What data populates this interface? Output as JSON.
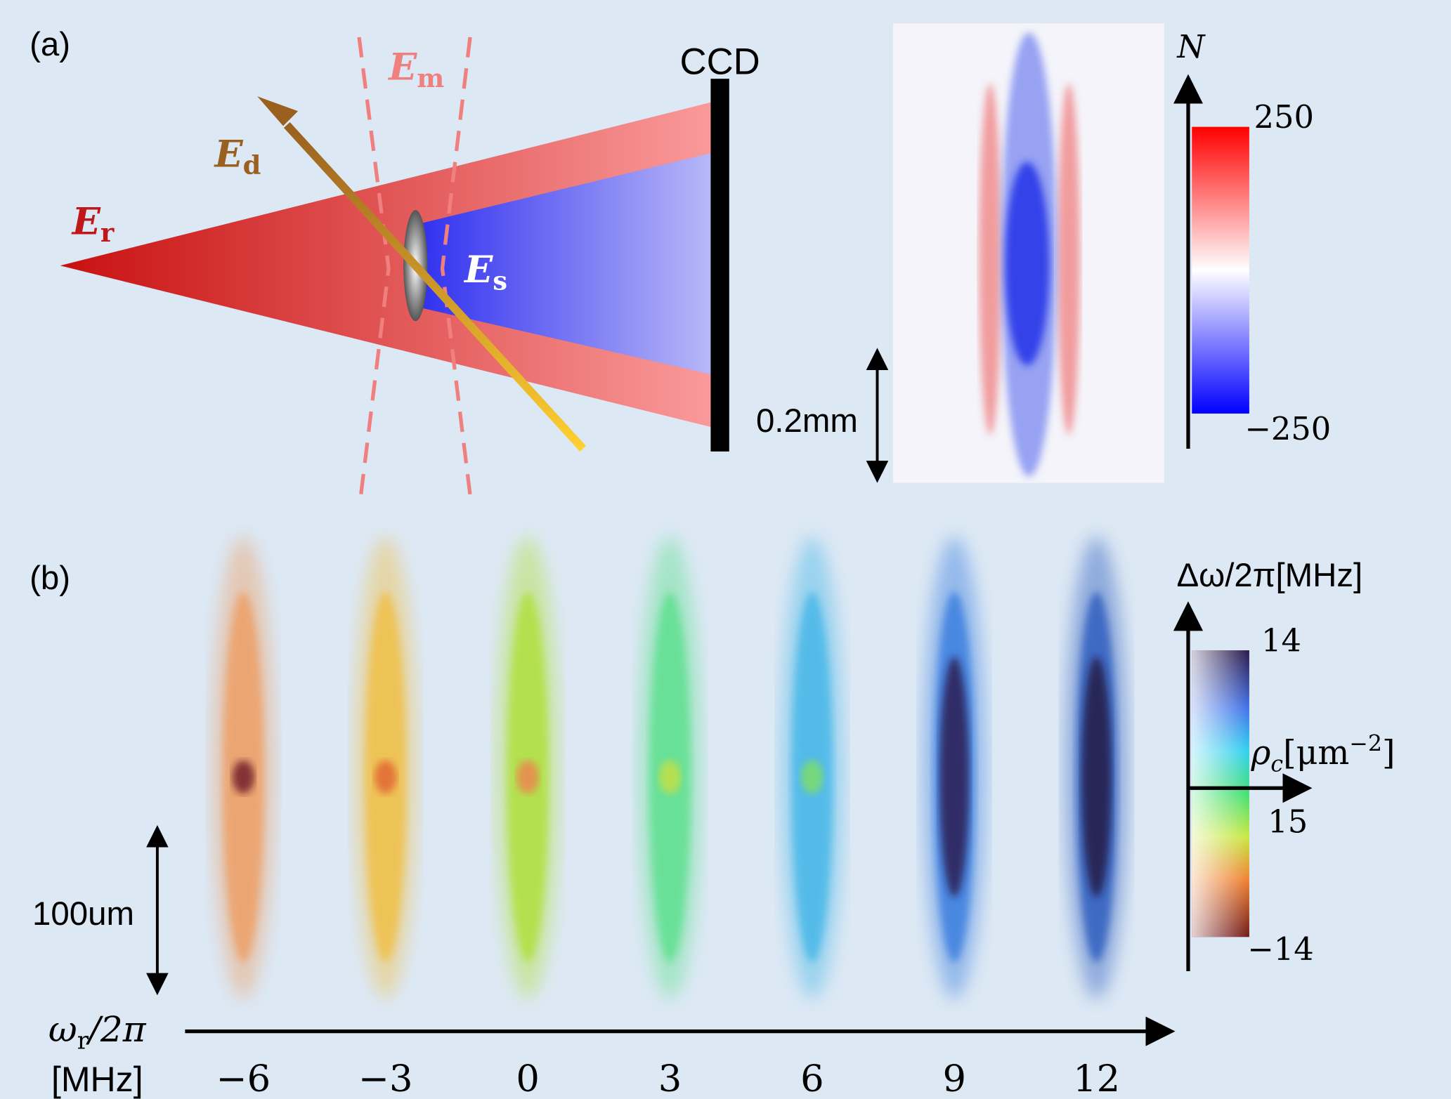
{
  "panel_a": {
    "label": "(a)",
    "E_r": {
      "symbol": "E",
      "sub": "r"
    },
    "E_d": {
      "symbol": "E",
      "sub": "d"
    },
    "E_m": {
      "symbol": "E",
      "sub": "m"
    },
    "E_s": {
      "symbol": "E",
      "sub": "s"
    },
    "detector": "CCD",
    "scale_bar": "0.2mm",
    "colorbar": {
      "label": "N",
      "ticks": [
        250,
        {
          "value": -250,
          "label": "−250"
        }
      ]
    }
  },
  "panel_b": {
    "label": "(b)",
    "scale_bar": "100um",
    "x_axis": {
      "label": {
        "symbol": "ω",
        "sub": "r",
        "rest": "/2π"
      },
      "unit": "[MHz]",
      "ticks": [
        {
          "value": -6,
          "label": "−6"
        },
        {
          "value": -3,
          "label": "−3"
        },
        0,
        3,
        6,
        9,
        12
      ]
    },
    "colorbar": {
      "axis_label": "Δω/2π[MHz]",
      "density_label": {
        "symbol": "ρ",
        "sub": "c",
        "unit": "[μm",
        "sup": "−2",
        "close": "]"
      },
      "ticks": [
        14,
        15,
        {
          "value": -14,
          "label": "−14"
        }
      ]
    }
  }
}
